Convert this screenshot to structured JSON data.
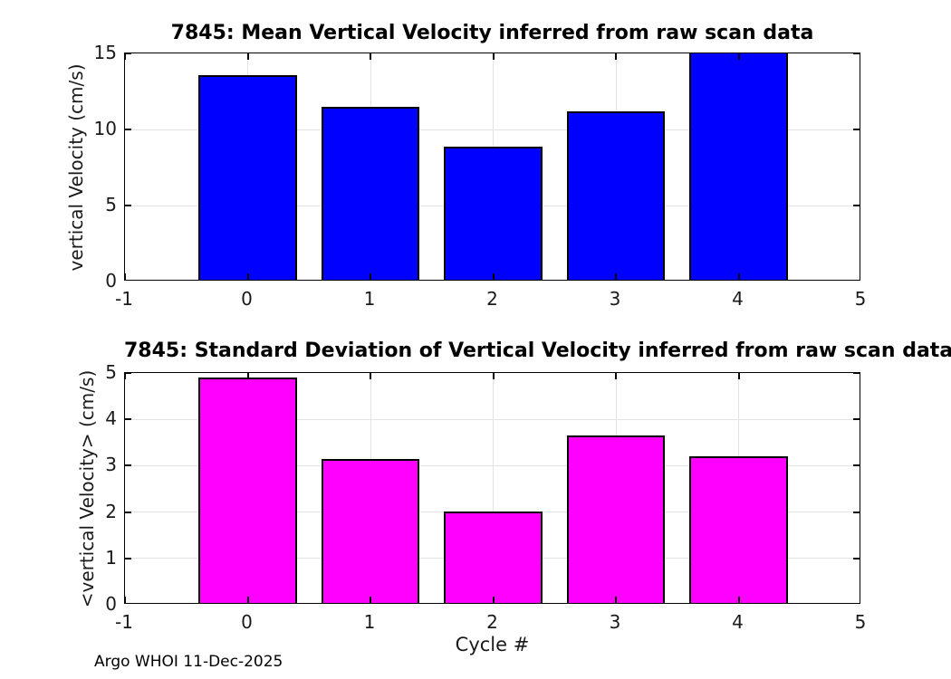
{
  "footer": "Argo WHOI 11-Dec-2025",
  "chart_data": [
    {
      "type": "bar",
      "title": "7845: Mean Vertical Velocity inferred from raw scan data",
      "xlabel": "",
      "ylabel": "vertical Velocity (cm/s)",
      "x": [
        0,
        1,
        2,
        3,
        4
      ],
      "values": [
        13.6,
        11.5,
        8.85,
        11.2,
        15.2
      ],
      "note": "bar at cycle 4 exceeds the y-axis maximum and is clipped at 15",
      "bar_color": "#0000ff",
      "bar_edge_color": "#000000",
      "bar_width": 0.8,
      "xlim": [
        -1,
        5
      ],
      "ylim": [
        0,
        15
      ],
      "xticks": [
        -1,
        0,
        1,
        2,
        3,
        4,
        5
      ],
      "yticks": [
        0,
        5,
        10,
        15
      ],
      "grid": true,
      "legend": null
    },
    {
      "type": "bar",
      "title": "7845: Standard Deviation of Vertical Velocity inferred from raw scan data",
      "xlabel": "Cycle #",
      "ylabel": "<vertical Velocity> (cm/s)",
      "x": [
        0,
        1,
        2,
        3,
        4
      ],
      "values": [
        4.9,
        3.15,
        2.02,
        3.65,
        3.2
      ],
      "bar_color": "#ff00ff",
      "bar_edge_color": "#000000",
      "bar_width": 0.8,
      "xlim": [
        -1,
        5
      ],
      "ylim": [
        0,
        5
      ],
      "xticks": [
        -1,
        0,
        1,
        2,
        3,
        4,
        5
      ],
      "yticks": [
        0,
        1,
        2,
        3,
        4,
        5
      ],
      "grid": true,
      "legend": null
    }
  ]
}
